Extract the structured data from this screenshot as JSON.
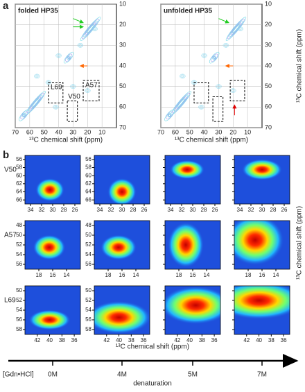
{
  "panel_a": {
    "label": "a",
    "x_label": "¹³C chemical shift (ppm)",
    "y_label": "¹³C chemical shift (ppm)",
    "xlim": [
      70,
      0
    ],
    "ylim": [
      10,
      70
    ],
    "xticks": [
      70,
      60,
      50,
      40,
      30,
      20,
      10
    ],
    "yticks": [
      10,
      20,
      30,
      40,
      50,
      60,
      70
    ],
    "spectra": [
      {
        "title": "folded HP35",
        "boxes": [
          {
            "label": "L69",
            "x": [
              47,
              37
            ],
            "y": [
              48,
              58
            ]
          },
          {
            "label": "V50",
            "x": [
              34,
              27
            ],
            "y": [
              57,
              67
            ]
          },
          {
            "label": "A57",
            "x": [
              23,
              12
            ],
            "y": [
              47,
              57
            ]
          }
        ]
      },
      {
        "title": "unfolded HP35",
        "boxes": [
          {
            "x": [
              47,
              37
            ],
            "y": [
              48,
              58
            ]
          },
          {
            "x": [
              34,
              27
            ],
            "y": [
              55,
              67
            ]
          },
          {
            "x": [
              22,
              12
            ],
            "y": [
              47,
              57
            ]
          }
        ]
      }
    ]
  },
  "panel_b": {
    "label": "b",
    "x_label": "¹³C chemical shift (ppm)",
    "y_label": "¹³C chemical shift (ppm)",
    "axis_label": "[Gdn•HCl]",
    "arrow_label": "denaturation",
    "conditions": [
      "0M",
      "4M",
      "5M",
      "7M"
    ],
    "rows": [
      {
        "name": "V50",
        "xlim": [
          35,
          25
        ],
        "ylim": [
          55,
          67
        ],
        "xticks": [
          34,
          32,
          30,
          28,
          26
        ],
        "yticks": [
          56,
          58,
          60,
          62,
          64,
          66
        ],
        "peaks": [
          {
            "x": 30.5,
            "y": 63.5,
            "sx": 1.0,
            "sy": 1.1
          },
          {
            "x": 30,
            "y": 64,
            "sx": 1.0,
            "sy": 1.3
          },
          {
            "x": 31,
            "y": 58.5,
            "sx": 1.2,
            "sy": 0.9
          },
          {
            "x": 30,
            "y": 58.5,
            "sx": 1.4,
            "sy": 1.0
          }
        ]
      },
      {
        "name": "A57",
        "xlim": [
          20,
          12
        ],
        "ylim": [
          47,
          57
        ],
        "xticks": [
          18,
          16,
          14
        ],
        "yticks": [
          48,
          50,
          52,
          54,
          56
        ],
        "peaks": [
          {
            "x": 16.5,
            "y": 52.5,
            "sx": 0.9,
            "sy": 1.0
          },
          {
            "x": 16.5,
            "y": 52.5,
            "sx": 1.0,
            "sy": 1.0
          },
          {
            "x": 17,
            "y": 52,
            "sx": 1.0,
            "sy": 1.8
          },
          {
            "x": 17,
            "y": 51,
            "sx": 1.6,
            "sy": 2.0
          }
        ]
      },
      {
        "name": "L69",
        "xlim": [
          44,
          35
        ],
        "ylim": [
          49,
          59
        ],
        "xticks": [
          42,
          40,
          38,
          36
        ],
        "yticks": [
          50,
          52,
          54,
          56,
          58
        ],
        "peaks": [
          {
            "x": 40,
            "y": 56,
            "sx": 1.3,
            "sy": 0.8
          },
          {
            "x": 40,
            "y": 55.5,
            "sx": 2.0,
            "sy": 1.3
          },
          {
            "x": 39,
            "y": 53,
            "sx": 2.2,
            "sy": 1.5
          },
          {
            "x": 40,
            "y": 52,
            "sx": 2.8,
            "sy": 1.5
          }
        ]
      }
    ]
  }
}
